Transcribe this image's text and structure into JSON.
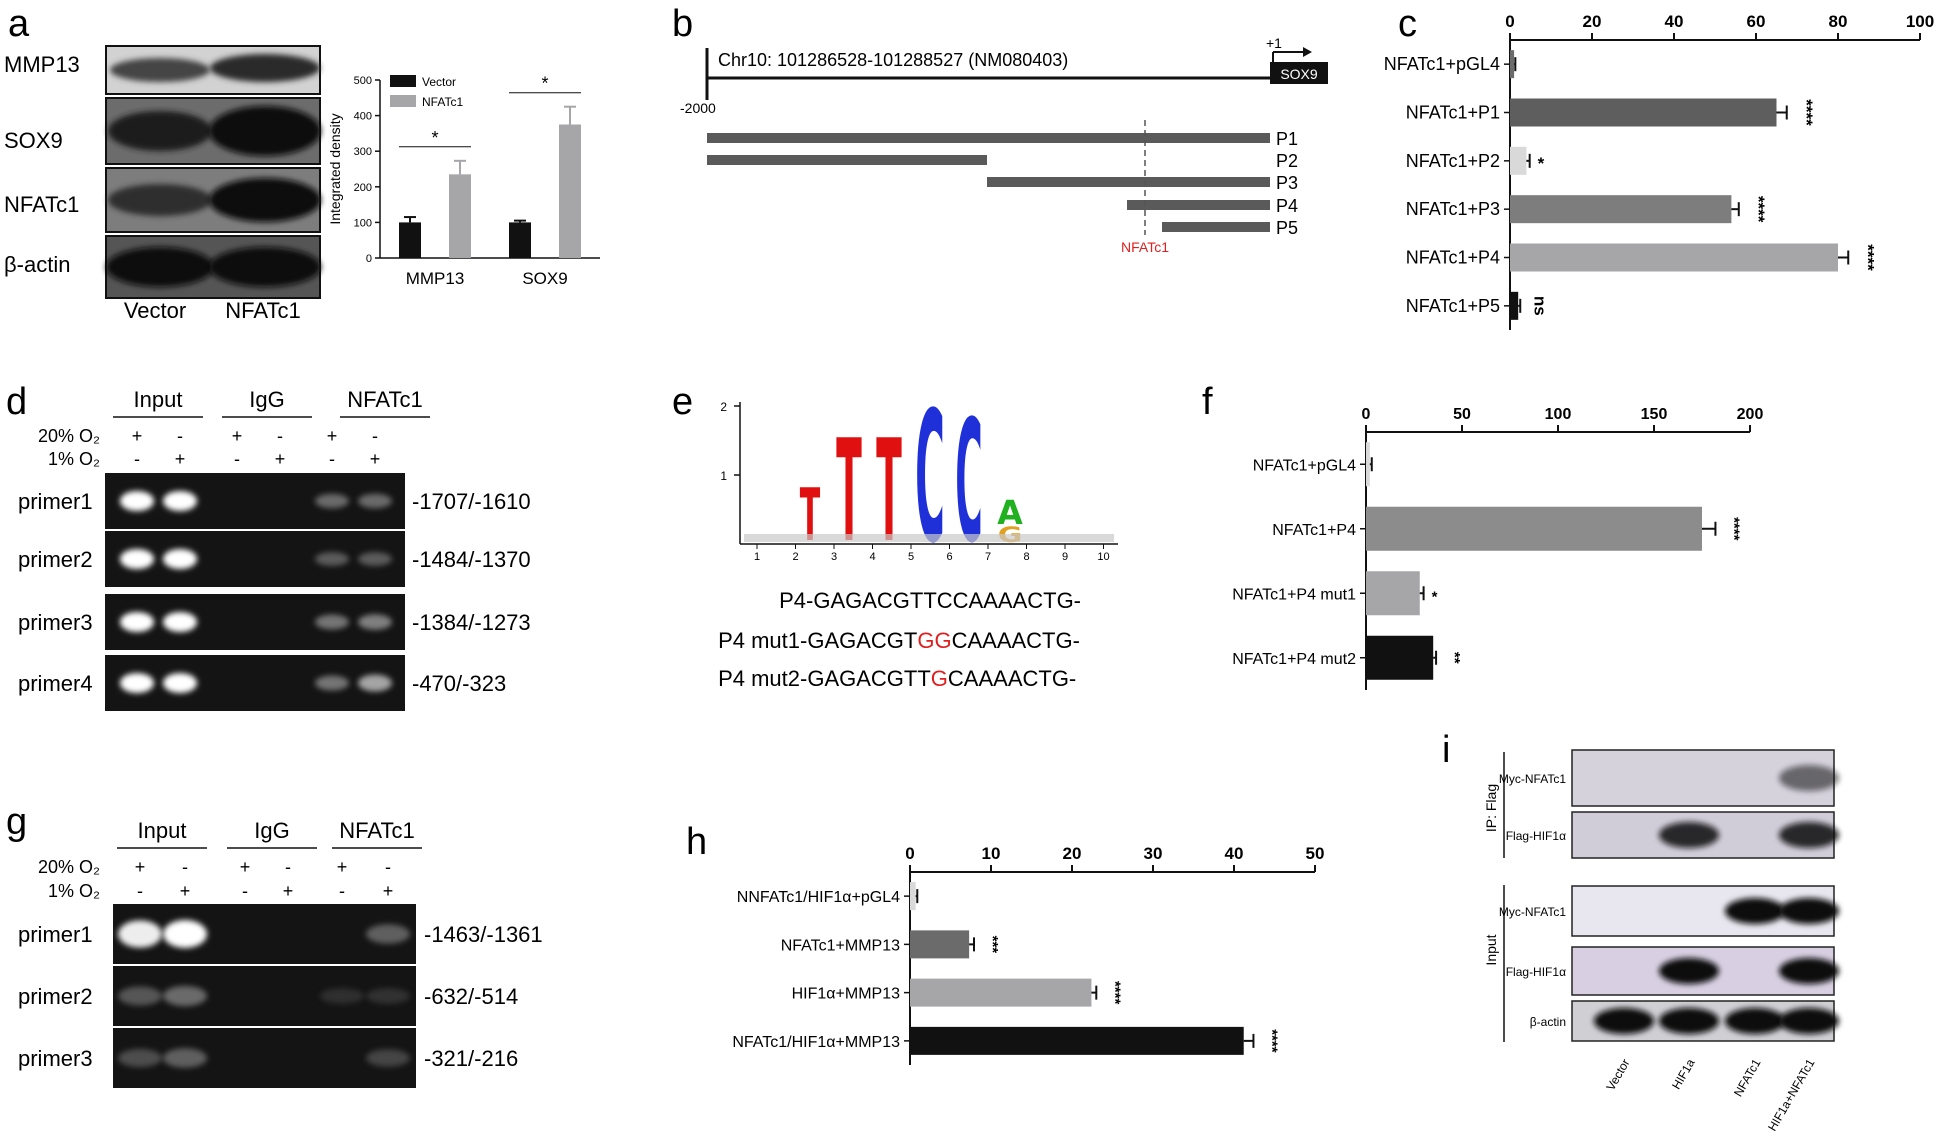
{
  "panels": {
    "a": {
      "letter": "a",
      "blots": [
        "MMP13",
        "SOX9",
        "NFATc1",
        "β-actin"
      ],
      "lanes": [
        "Vector",
        "NFATc1"
      ],
      "chart_data": {
        "type": "bar",
        "categories": [
          "MMP13",
          "SOX9"
        ],
        "series": [
          {
            "name": "Vector",
            "values": [
              100,
              100
            ],
            "errors": [
              15,
              5
            ],
            "color": "#111111"
          },
          {
            "name": "NFATc1",
            "values": [
              235,
              375
            ],
            "errors": [
              38,
              50
            ],
            "color": "#a6a6a8"
          }
        ],
        "ylabel": "Integrated density",
        "yticks": [
          "0",
          "100",
          "200",
          "300",
          "400",
          "500"
        ],
        "ylim": [
          0,
          500
        ],
        "sig": [
          "*",
          "*"
        ],
        "legend": "top-left"
      }
    },
    "b": {
      "letter": "b",
      "chrom": "Chr10: 101286528-101288527  (NM080403)",
      "gene": "SOX9",
      "tss": "+1",
      "start": "-2000",
      "fragments": [
        "P1",
        "P2",
        "P3",
        "P4",
        "P5"
      ],
      "site": "NFATc1"
    },
    "c": {
      "letter": "c",
      "chart_data": {
        "type": "bar",
        "orientation": "horizontal",
        "categories": [
          "NFATc1+pGL4",
          "NFATc1+P1",
          "NFATc1+P2",
          "NFATc1+P3",
          "NFATc1+P4",
          "NFATc1+P5"
        ],
        "values": [
          1,
          65,
          4,
          54,
          80,
          2
        ],
        "errors": [
          0.3,
          2.5,
          0.8,
          1.8,
          2.5,
          0.5
        ],
        "colors": [
          "#6b6b6b",
          "#5e5e5e",
          "#d9d9d9",
          "#7d7d7d",
          "#a6a6a8",
          "#111111"
        ],
        "sig": [
          "",
          "****",
          "*",
          "****",
          "****",
          "ns"
        ],
        "xticks": [
          "0",
          "20",
          "40",
          "60",
          "80",
          "100"
        ],
        "xlim": [
          0,
          100
        ]
      }
    },
    "d": {
      "letter": "d",
      "groups": [
        "Input",
        "IgG",
        "NFATc1"
      ],
      "cond1": "20% O₂",
      "cond2": "1% O₂",
      "signs1": [
        "+",
        "-",
        "+",
        "-",
        "+",
        "-"
      ],
      "signs2": [
        "-",
        "+",
        "-",
        "+",
        "-",
        "+"
      ],
      "rows": [
        {
          "primer": "primer1",
          "range": "-1707/-1610"
        },
        {
          "primer": "primer2",
          "range": "-1484/-1370"
        },
        {
          "primer": "primer3",
          "range": "-1384/-1273"
        },
        {
          "primer": "primer4",
          "range": "-470/-323"
        }
      ]
    },
    "e": {
      "letter": "e",
      "yticks": [
        "2",
        "1"
      ],
      "xticks": [
        "1",
        "2",
        "3",
        "4",
        "5",
        "6",
        "7",
        "8",
        "9",
        "10"
      ],
      "seqs": [
        {
          "name": "P4",
          "pre": "-GAGACGTTCCAAAACTG-",
          "mut": "",
          "post": ""
        },
        {
          "name": "P4 mut1",
          "pre": "-GAGACGT",
          "mut": "GG",
          "post": "CAAAACTG-"
        },
        {
          "name": "P4 mut2",
          "pre": "-GAGACGTT",
          "mut": "G",
          "post": "CAAAACTG-"
        }
      ]
    },
    "f": {
      "letter": "f",
      "chart_data": {
        "type": "bar",
        "orientation": "horizontal",
        "categories": [
          "NFATc1+pGL4",
          "NFATc1+P4",
          "NFATc1+P4 mut1",
          "NFATc1+P4 mut2"
        ],
        "values": [
          2,
          175,
          28,
          35
        ],
        "errors": [
          1,
          7,
          2,
          1.5
        ],
        "colors": [
          "#d9d9d9",
          "#8c8c8c",
          "#a6a6a8",
          "#111111"
        ],
        "sig": [
          "",
          "****",
          "*",
          "**"
        ],
        "xticks": [
          "0",
          "50",
          "100",
          "150",
          "200"
        ],
        "xlim": [
          0,
          200
        ]
      }
    },
    "g": {
      "letter": "g",
      "groups": [
        "Input",
        "IgG",
        "NFATc1"
      ],
      "cond1": "20% O₂",
      "cond2": "1% O₂",
      "signs1": [
        "+",
        "-",
        "+",
        "-",
        "+",
        "-"
      ],
      "signs2": [
        "-",
        "+",
        "-",
        "+",
        "-",
        "+"
      ],
      "rows": [
        {
          "primer": "primer1",
          "range": "-1463/-1361"
        },
        {
          "primer": "primer2",
          "range": "-632/-514"
        },
        {
          "primer": "primer3",
          "range": "-321/-216"
        }
      ]
    },
    "h": {
      "letter": "h",
      "chart_data": {
        "type": "bar",
        "orientation": "horizontal",
        "categories": [
          "NNFATc1/HIF1α+pGL4",
          "NFATc1+MMP13",
          "HIF1α+MMP13",
          "NFATc1/HIF1α+MMP13"
        ],
        "values": [
          0.7,
          7.3,
          22.4,
          41.2
        ],
        "errors": [
          0.2,
          0.6,
          0.6,
          1.2
        ],
        "colors": [
          "#d9d9d9",
          "#6b6b6b",
          "#a6a6a8",
          "#111111"
        ],
        "sig": [
          "",
          "***",
          "****",
          "****"
        ],
        "xticks": [
          "0",
          "10",
          "20",
          "30",
          "40",
          "50"
        ],
        "xlim": [
          0,
          50
        ]
      }
    },
    "i": {
      "letter": "i",
      "ip_label": "IP: Flag",
      "input_label": "Input",
      "ip_rows": [
        "Myc-NFATc1",
        "Flag-HIF1α"
      ],
      "input_rows": [
        "Myc-NFATc1",
        "Flag-HIF1α",
        "β-actin"
      ],
      "lanes": [
        "Vector",
        "HIF1a",
        "NFATc1",
        "HIF1a+NFATc1"
      ]
    }
  }
}
